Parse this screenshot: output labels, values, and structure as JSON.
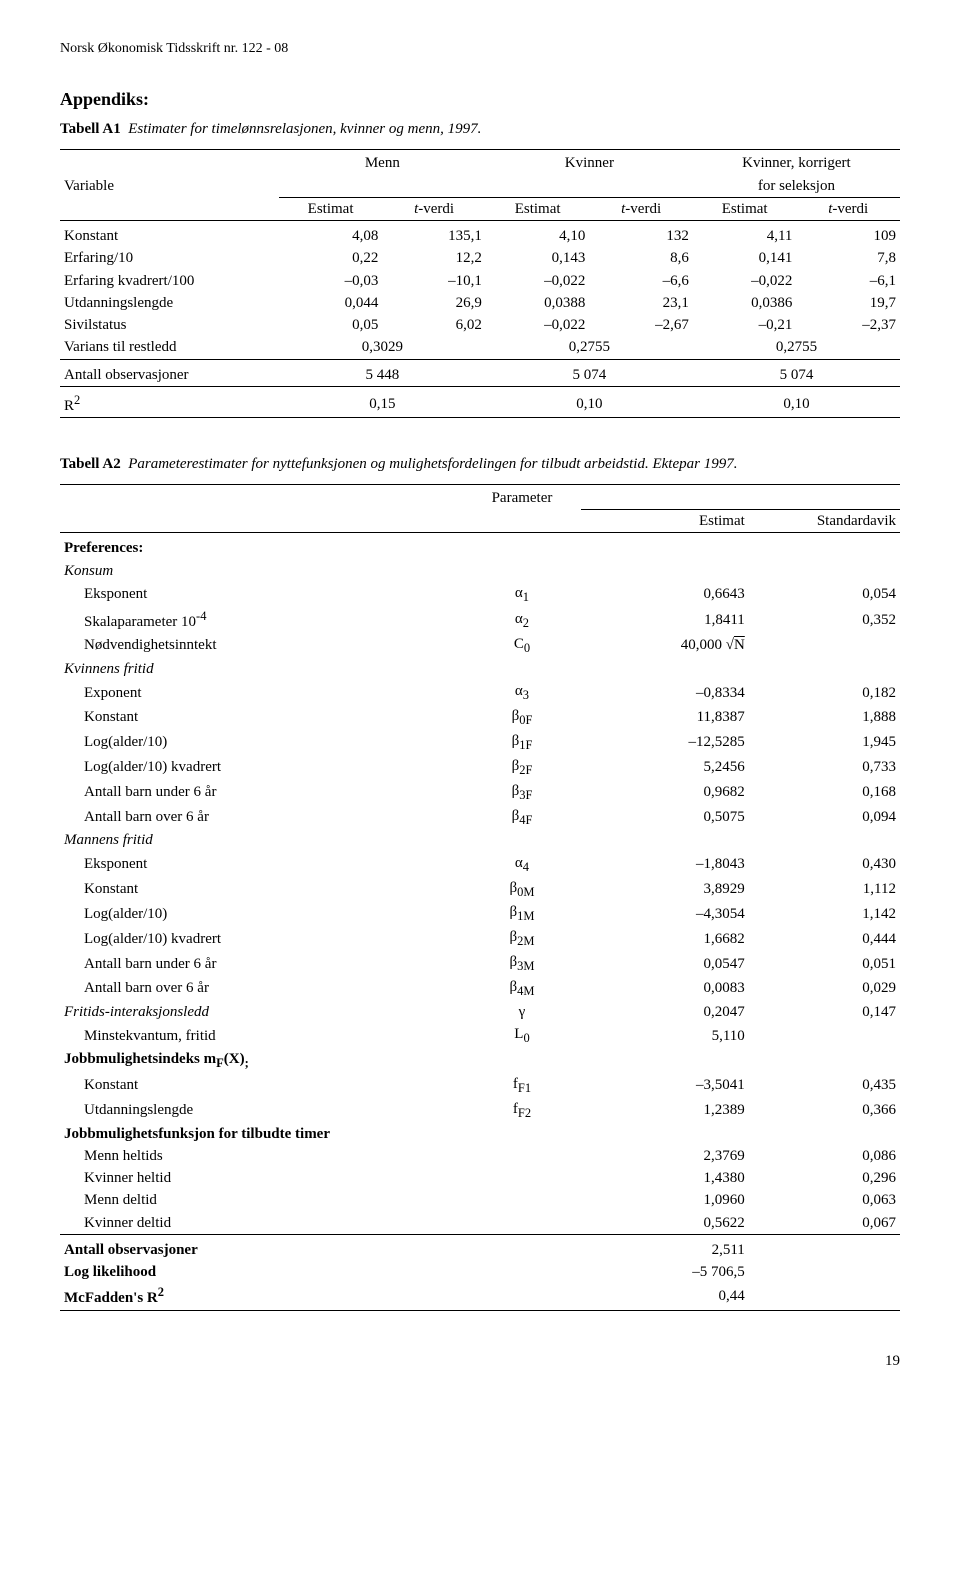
{
  "running_head": "Norsk Økonomisk Tidsskrift nr. 122 - 08",
  "appendix_title": "Appendiks:",
  "page_number": "19",
  "tableA1": {
    "label": "Tabell A1",
    "desc": "Estimater for timelønnsrelasjonen, kvinner og menn, 1997.",
    "group_labels": {
      "menn": "Menn",
      "kvinner": "Kvinner",
      "korr_l1": "Kvinner, korrigert",
      "korr_l2": "for seleksjon"
    },
    "row_header_variable": "Variable",
    "col_labels": {
      "estimat": "Estimat",
      "tverdi_html": "<i>t</i>-verdi"
    },
    "rows": [
      {
        "name": "Konstant",
        "v": [
          "4,08",
          "135,1",
          "4,10",
          "132",
          "4,11",
          "109"
        ]
      },
      {
        "name": "Erfaring/10",
        "v": [
          "0,22",
          "12,2",
          "0,143",
          "8,6",
          "0,141",
          "7,8"
        ]
      },
      {
        "name": "Erfaring kvadrert/100",
        "v": [
          "–0,03",
          "–10,1",
          "–0,022",
          "–6,6",
          "–0,022",
          "–6,1"
        ]
      },
      {
        "name": "Utdanningslengde",
        "v": [
          "0,044",
          "26,9",
          "0,0388",
          "23,1",
          "0,0386",
          "19,7"
        ]
      },
      {
        "name": "Sivilstatus",
        "v": [
          "0,05",
          "6,02",
          "–0,022",
          "–2,67",
          "–0,21",
          "–2,37"
        ]
      }
    ],
    "varians_row": {
      "name": "Varians til restledd",
      "v": [
        "0,3029",
        "0,2755",
        "0,2755"
      ]
    },
    "obs_row": {
      "name": "Antall observasjoner",
      "v": [
        "5 448",
        "5 074",
        "5 074"
      ]
    },
    "r2_row": {
      "name_html": "R<sup>2</sup>",
      "v": [
        "0,15",
        "0,10",
        "0,10"
      ]
    }
  },
  "tableA2": {
    "label": "Tabell A2",
    "desc": "Parameterestimater for nyttefunksjonen og mulighetsfordelingen for tilbudt arbeidstid. Ektepar 1997.",
    "header": {
      "parameter": "Parameter",
      "estimat": "Estimat",
      "std": "Standardavik"
    },
    "sections": [
      {
        "title": "Preferences:",
        "bold": true
      },
      {
        "title": "Konsum",
        "italic": true,
        "rows": [
          {
            "name": "Eksponent",
            "param_html": "α<sub>1</sub>",
            "est": "0,6643",
            "std": "0,054"
          },
          {
            "name_html": "Skalaparameter 10<sup>-4</sup>",
            "param_html": "α<sub>2</sub>",
            "est": "1,8411",
            "std": "0,352"
          },
          {
            "name": "Nødvendighetsinntekt",
            "param_html": "C<sub>0</sub>",
            "est_html": "40,000 √<span class=\"sqrt\">N</span>",
            "std": ""
          }
        ]
      },
      {
        "title": "Kvinnens fritid",
        "italic": true,
        "rows": [
          {
            "name": "Exponent",
            "param_html": "α<sub>3</sub>",
            "est": "–0,8334",
            "std": "0,182"
          },
          {
            "name": "Konstant",
            "param_html": "β<sub>0F</sub>",
            "est": "11,8387",
            "std": "1,888"
          },
          {
            "name": "Log(alder/10)",
            "param_html": "β<sub>1F</sub>",
            "est": "–12,5285",
            "std": "1,945"
          },
          {
            "name": "Log(alder/10) kvadrert",
            "param_html": "β<sub>2F</sub>",
            "est": "5,2456",
            "std": "0,733"
          },
          {
            "name": "Antall barn under 6 år",
            "param_html": "β<sub>3F</sub>",
            "est": "0,9682",
            "std": "0,168"
          },
          {
            "name": "Antall barn over 6 år",
            "param_html": "β<sub>4F</sub>",
            "est": "0,5075",
            "std": "0,094"
          }
        ]
      },
      {
        "title": "Mannens fritid",
        "italic": true,
        "rows": [
          {
            "name": "Eksponent",
            "param_html": "α<sub>4</sub>",
            "est": "–1,8043",
            "std": "0,430"
          },
          {
            "name": "Konstant",
            "param_html": "β<sub>0M</sub>",
            "est": "3,8929",
            "std": "1,112"
          },
          {
            "name": "Log(alder/10)",
            "param_html": "β<sub>1M</sub>",
            "est": "–4,3054",
            "std": "1,142"
          },
          {
            "name": "Log(alder/10) kvadrert",
            "param_html": "β<sub>2M</sub>",
            "est": "1,6682",
            "std": "0,444"
          },
          {
            "name": "Antall barn under 6 år",
            "param_html": "β<sub>3M</sub>",
            "est": "0,0547",
            "std": "0,051"
          },
          {
            "name": "Antall barn over 6 år",
            "param_html": "β<sub>4M</sub>",
            "est": "0,0083",
            "std": "0,029"
          }
        ]
      },
      {
        "title": "Fritids-interaksjonsledd",
        "italic": true,
        "inline_rows": [
          {
            "param_html": "γ",
            "est": "0,2047",
            "std": "0,147"
          }
        ],
        "rows": [
          {
            "name": "Minstekvantum, fritid",
            "param_html": "L<sub>0</sub>",
            "est": "5,110",
            "std": ""
          }
        ]
      },
      {
        "title_html": "Jobbmulighetsindeks m<sub>F</sub>(X)<sub>;</sub>",
        "bold": true,
        "rows": [
          {
            "name": "Konstant",
            "param_html": "f<sub>F1</sub>",
            "est": "–3,5041",
            "std": "0,435"
          },
          {
            "name": "Utdanningslengde",
            "param_html": "f<sub>F2</sub>",
            "est": "1,2389",
            "std": "0,366"
          }
        ]
      },
      {
        "title": "Jobbmulighetsfunksjon for tilbudte timer",
        "bold": true,
        "rows": [
          {
            "name": "Menn heltids",
            "param_html": "",
            "est": "2,3769",
            "std": "0,086"
          },
          {
            "name": "Kvinner heltid",
            "param_html": "",
            "est": "1,4380",
            "std": "0,296"
          },
          {
            "name": "Menn deltid",
            "param_html": "",
            "est": "1,0960",
            "std": "0,063"
          },
          {
            "name": "Kvinner deltid",
            "param_html": "",
            "est": "0,5622",
            "std": "0,067"
          }
        ]
      }
    ],
    "footer_rows": [
      {
        "name": "Antall observasjoner",
        "est": "2,511"
      },
      {
        "name": "Log likelihood",
        "est": "–5 706,5"
      },
      {
        "name_html": "McFadden's R<sup>2</sup>",
        "est": "0,44"
      }
    ]
  }
}
